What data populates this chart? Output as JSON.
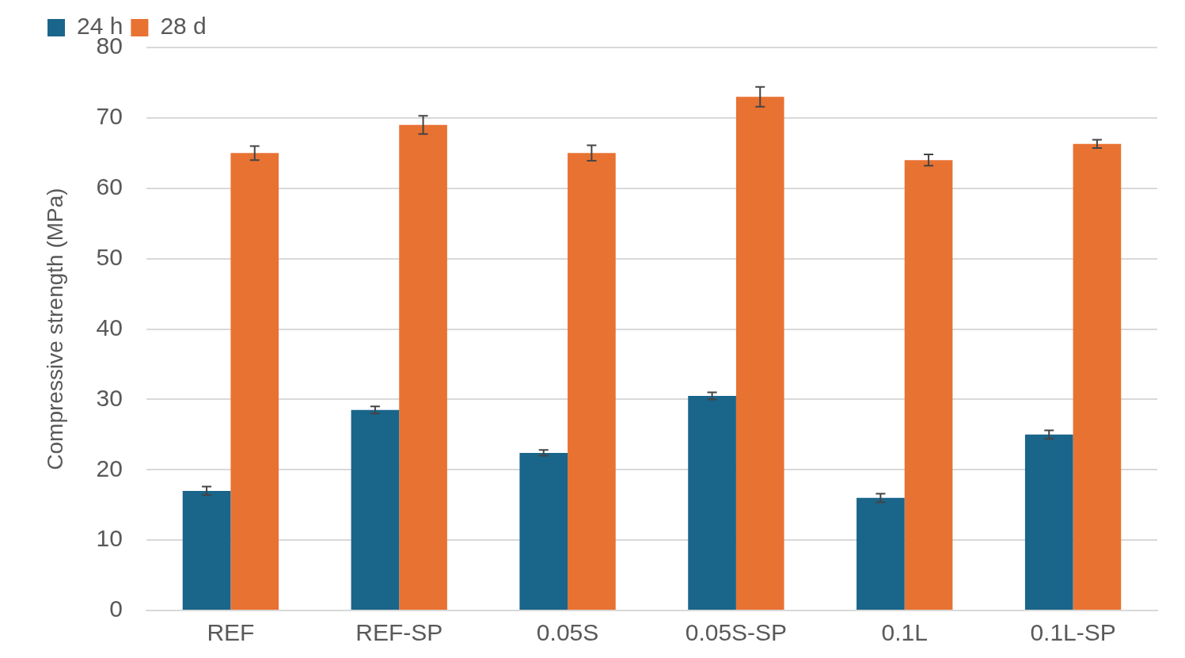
{
  "chart_data": {
    "type": "bar",
    "ylabel": "Compressive strength (MPa)",
    "categories": [
      "REF",
      "REF-SP",
      "0.05S",
      "0.05S-SP",
      "0.1L",
      "0.1L-SP"
    ],
    "series": [
      {
        "name": "24 h",
        "color": "#1a658a",
        "values": [
          17.0,
          28.5,
          22.4,
          30.5,
          16.0,
          25.0
        ],
        "errors": [
          0.6,
          0.5,
          0.4,
          0.5,
          0.6,
          0.6
        ]
      },
      {
        "name": "28 d",
        "color": "#e87232",
        "values": [
          65.0,
          69.0,
          65.0,
          73.0,
          64.0,
          66.3
        ],
        "errors": [
          1.0,
          1.3,
          1.1,
          1.4,
          0.8,
          0.6
        ]
      }
    ],
    "ylim": [
      0,
      80
    ],
    "yticks": [
      0,
      10,
      20,
      30,
      40,
      50,
      60,
      70,
      80
    ],
    "grid": "y",
    "legend": "top left"
  }
}
